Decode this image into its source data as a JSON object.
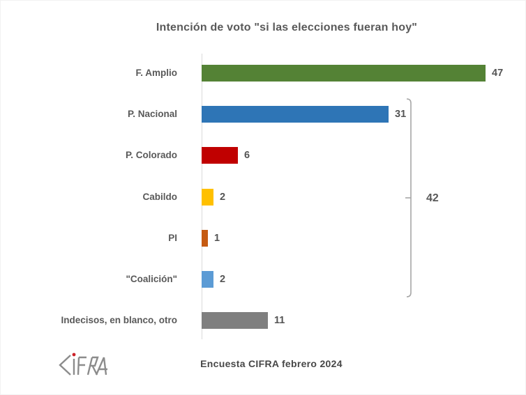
{
  "chart_data": {
    "type": "bar",
    "orientation": "horizontal",
    "title": "Intención de voto \"si las elecciones fueran hoy\"",
    "categories": [
      "F. Amplio",
      "P. Nacional",
      "P. Colorado",
      "Cabildo",
      "PI",
      "\"Coalición\"",
      "Indecisos, en blanco, otro"
    ],
    "values": [
      47,
      31,
      6,
      2,
      1,
      2,
      11
    ],
    "bar_colors": [
      "#548235",
      "#2e75b6",
      "#c00000",
      "#ffc000",
      "#c55a11",
      "#5b9bd5",
      "#7f7f7f"
    ],
    "xlim": [
      0,
      50
    ],
    "grid": false,
    "legend": false,
    "data_labels_shown": true,
    "bracket": {
      "label": "42",
      "from_index": 1,
      "to_index": 5,
      "groups_categories": [
        "P. Nacional",
        "P. Colorado",
        "Cabildo",
        "PI",
        "\"Coalición\""
      ]
    }
  },
  "footer": {
    "caption": "Encuesta CIFRA febrero 2024"
  },
  "logo": {
    "text": "CIFRA",
    "letter_color": "#8c8c8c",
    "dot_color": "#cc2229"
  },
  "styles": {
    "text_color": "#595959",
    "axis_line_color": "#d9d9d9",
    "bracket_color": "#a6a6a6",
    "background": "#ffffff"
  }
}
